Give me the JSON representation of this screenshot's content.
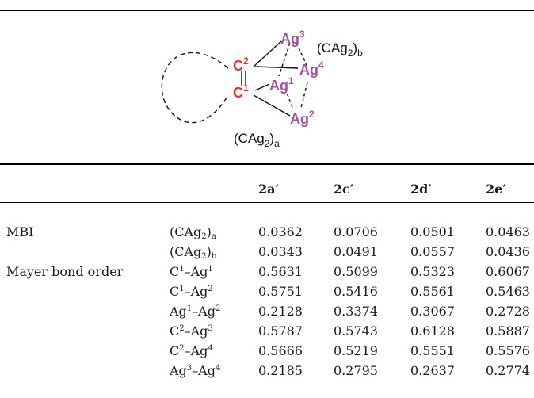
{
  "figure": {
    "atoms": {
      "c1": {
        "symbol": "C",
        "index": "1"
      },
      "c2": {
        "symbol": "C",
        "index": "2"
      },
      "ag1": {
        "symbol": "Ag",
        "index": "1"
      },
      "ag2": {
        "symbol": "Ag",
        "index": "2"
      },
      "ag3": {
        "symbol": "Ag",
        "index": "3"
      },
      "ag4": {
        "symbol": "Ag",
        "index": "4"
      }
    },
    "group_a": {
      "prefix": "(CAg",
      "sub": "2",
      "suffix": ")",
      "tag": "a"
    },
    "group_b": {
      "prefix": "(CAg",
      "sub": "2",
      "suffix": ")",
      "tag": "b"
    },
    "colors": {
      "carbon": "#e8332a",
      "silver": "#a3539f",
      "line": "#111111"
    }
  },
  "table": {
    "headers": [
      {
        "name": "2a",
        "prime": "′"
      },
      {
        "name": "2c",
        "prime": "′"
      },
      {
        "name": "2d",
        "prime": "′"
      },
      {
        "name": "2e",
        "prime": "′"
      }
    ],
    "sections": [
      {
        "label": "MBI"
      },
      {
        "label": "Mayer bond order"
      }
    ],
    "rows": [
      {
        "bond": {
          "a": "(CAg",
          "b": "2",
          "c": ")",
          "d": "a"
        },
        "values": [
          "0.0362",
          "0.0706",
          "0.0501",
          "0.0463"
        ]
      },
      {
        "bond": {
          "a": "(CAg",
          "b": "2",
          "c": ")",
          "d": "b"
        },
        "values": [
          "0.0343",
          "0.0491",
          "0.0557",
          "0.0436"
        ]
      },
      {
        "bond": {
          "a": "C",
          "b": "1",
          "c": "–Ag",
          "d": "1"
        },
        "values": [
          "0.5631",
          "0.5099",
          "0.5323",
          "0.6067"
        ]
      },
      {
        "bond": {
          "a": "C",
          "b": "1",
          "c": "–Ag",
          "d": "2"
        },
        "values": [
          "0.5751",
          "0.5416",
          "0.5561",
          "0.5463"
        ]
      },
      {
        "bond": {
          "a": "Ag",
          "b": "1",
          "c": "–Ag",
          "d": "2"
        },
        "values": [
          "0.2128",
          "0.3374",
          "0.3067",
          "0.2728"
        ]
      },
      {
        "bond": {
          "a": "C",
          "b": "2",
          "c": "–Ag",
          "d": "3"
        },
        "values": [
          "0.5787",
          "0.5743",
          "0.6128",
          "0.5887"
        ]
      },
      {
        "bond": {
          "a": "C",
          "b": "2",
          "c": "–Ag",
          "d": "4"
        },
        "values": [
          "0.5666",
          "0.5219",
          "0.5551",
          "0.5576"
        ]
      },
      {
        "bond": {
          "a": "Ag",
          "b": "3",
          "c": "–Ag",
          "d": "4"
        },
        "values": [
          "0.2185",
          "0.2795",
          "0.2637",
          "0.2774"
        ]
      }
    ]
  }
}
